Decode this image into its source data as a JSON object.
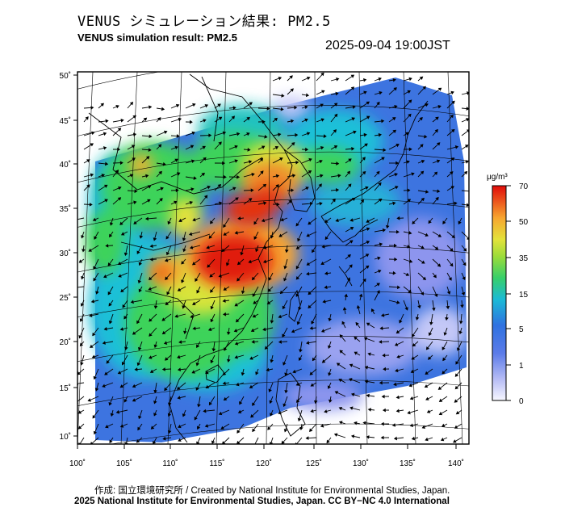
{
  "header": {
    "title_jp": "VENUS シミュレーション結果: PM2.5",
    "title_en": "VENUS simulation result: PM2.5",
    "timestamp": "2025-09-04 19:00JST"
  },
  "map": {
    "lat_labels": [
      "50˚",
      "45˚",
      "40˚",
      "35˚",
      "30˚",
      "25˚",
      "20˚",
      "15˚",
      "10˚"
    ],
    "lon_labels": [
      "100˚",
      "105˚",
      "110˚",
      "115˚",
      "120˚",
      "125˚",
      "130˚",
      "135˚",
      "140˚"
    ],
    "colors": {
      "water": "#ffffff",
      "frame": "#000000",
      "coastline": "#000000",
      "wind_arrow": "#000000"
    },
    "layers": [
      "pm25-concentration",
      "wind-vectors",
      "coastlines",
      "graticule"
    ]
  },
  "colorbar": {
    "unit": "μg/m³",
    "ticks": [
      "70",
      "50",
      "35",
      "15",
      "5",
      "1",
      "0"
    ],
    "stops": [
      {
        "value": "0",
        "color": "#f7f7ff"
      },
      {
        "value": "1",
        "color": "#8d95ee"
      },
      {
        "value": "5",
        "color": "#2e6fe0"
      },
      {
        "value": "15",
        "color": "#1ec0d8"
      },
      {
        "value": "20",
        "color": "#3cd35a"
      },
      {
        "value": "35",
        "color": "#d8e43a"
      },
      {
        "value": "50",
        "color": "#f7a630"
      },
      {
        "value": "70",
        "color": "#e00a0a"
      }
    ]
  },
  "footer": {
    "credit_jp": "作成: 国立環境研究所 / Created by National Institute for Environmental Studies, Japan.",
    "credit_en": "2025 National Institute for Environmental Studies, Japan. CC BY−NC 4.0 International"
  }
}
